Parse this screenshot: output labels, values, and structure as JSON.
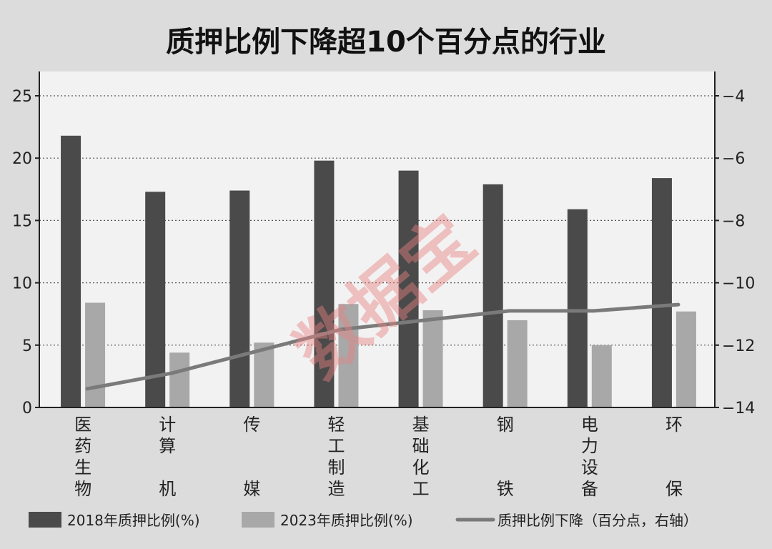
{
  "chart_data": {
    "type": "bar",
    "title": "质押比例下降超10个百分点的行业",
    "categories": [
      "医药生物",
      "计算机",
      "传媒",
      "轻工制造",
      "基础化工",
      "钢铁",
      "电力设备",
      "环保"
    ],
    "category_label_rows": [
      [
        "医",
        "药",
        "生",
        "物"
      ],
      [
        "计",
        "算",
        "",
        "机"
      ],
      [
        "传",
        "",
        "",
        "媒"
      ],
      [
        "轻",
        "工",
        "制",
        "造"
      ],
      [
        "基",
        "础",
        "化",
        "工"
      ],
      [
        "钢",
        "",
        "",
        "铁"
      ],
      [
        "电",
        "力",
        "设",
        "备"
      ],
      [
        "环",
        "",
        "",
        "保"
      ]
    ],
    "series": [
      {
        "name": "2018年质押比例(%)",
        "type": "bar",
        "axis": "left",
        "color": "#4a4a4a",
        "values": [
          21.8,
          17.3,
          17.4,
          19.8,
          19.0,
          17.9,
          15.9,
          18.4
        ]
      },
      {
        "name": "2023年质押比例(%)",
        "type": "bar",
        "axis": "left",
        "color": "#a8a8a8",
        "values": [
          8.4,
          4.4,
          5.2,
          8.3,
          7.8,
          7.0,
          5.0,
          7.7
        ]
      },
      {
        "name": "质押比例下降（百分点，右轴）",
        "type": "line",
        "axis": "right",
        "color": "#7a7a7a",
        "values": [
          -13.4,
          -12.9,
          -12.2,
          -11.5,
          -11.2,
          -10.9,
          -10.9,
          -10.7
        ]
      }
    ],
    "ylim_left": [
      0,
      25
    ],
    "yticks_left": [
      0,
      5,
      10,
      15,
      20,
      25
    ],
    "ylim_right": [
      -14,
      -4
    ],
    "yticks_right": [
      -14,
      -12,
      -10,
      -8,
      -6,
      -4
    ],
    "yticks_right_labels": [
      "−14",
      "−12",
      "−10",
      "−8",
      "−6",
      "−4"
    ],
    "grid": "horizontal-dotted",
    "legend": "bottom"
  },
  "watermark": "数据宝"
}
